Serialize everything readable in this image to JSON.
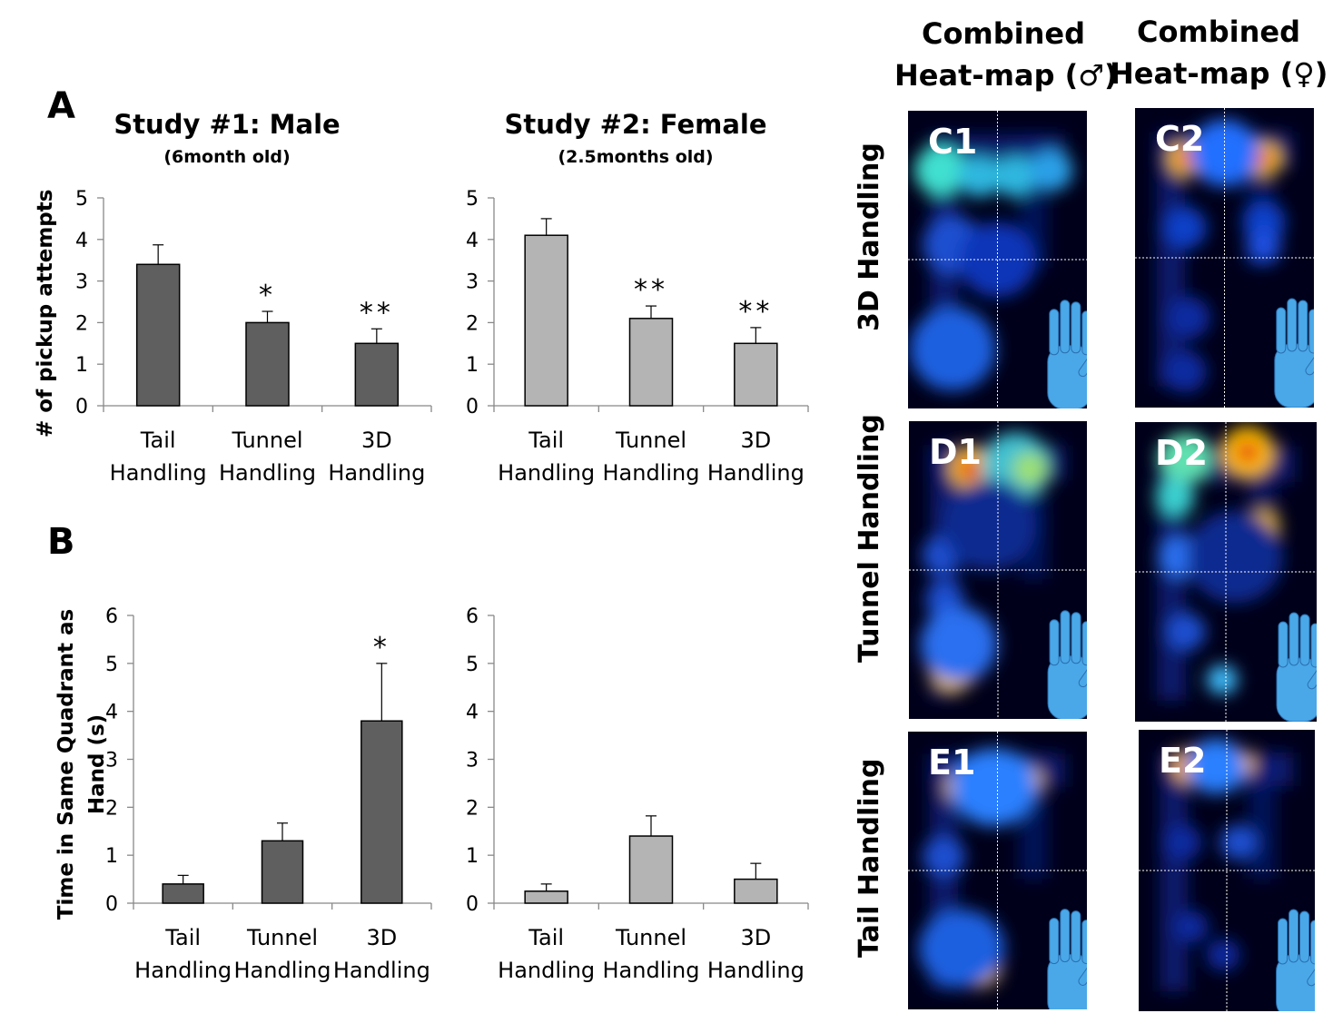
{
  "panels": {
    "a": "A",
    "b": "B"
  },
  "colors": {
    "male_bar": "#5f5f5f",
    "female_bar": "#b4b4b4"
  },
  "charts": {
    "a1": {
      "title": "Study #1: Male",
      "subtitle": "(6month old)",
      "ylabel": "# of pickup attempts"
    },
    "a2": {
      "title": "Study #2: Female",
      "subtitle": "(2.5months old)"
    },
    "b1": {
      "ylabel_line1": "Time in Same Quadrant as",
      "ylabel_line2": "Hand (s)"
    }
  },
  "heatmaps": {
    "col_male": [
      "Combined",
      "Heat-map (♂)"
    ],
    "col_female": [
      "Combined",
      "Heat-map (♀)"
    ],
    "rows": [
      "3D Handling",
      "Tunnel Handling",
      "Tail Handling"
    ],
    "tiles": [
      "C1",
      "C2",
      "D1",
      "D2",
      "E1",
      "E2"
    ]
  },
  "chart_data": [
    {
      "id": "a1",
      "type": "bar",
      "title": "Study #1: Male",
      "subtitle": "(6month old)",
      "ylabel": "# of pickup attempts",
      "categories": [
        [
          "Tail",
          "Handling"
        ],
        [
          "Tunnel",
          "Handling"
        ],
        [
          "3D",
          "Handling"
        ]
      ],
      "values": [
        3.4,
        2.0,
        1.5
      ],
      "errors": [
        0.47,
        0.27,
        0.35
      ],
      "significance": [
        "",
        "*",
        "**"
      ],
      "ylim": [
        0,
        5
      ],
      "yticks": [
        0,
        1,
        2,
        3,
        4,
        5
      ],
      "color": "#5f5f5f"
    },
    {
      "id": "a2",
      "type": "bar",
      "title": "Study #2: Female",
      "subtitle": "(2.5months old)",
      "ylabel": "",
      "categories": [
        [
          "Tail",
          "Handling"
        ],
        [
          "Tunnel",
          "Handling"
        ],
        [
          "3D",
          "Handling"
        ]
      ],
      "values": [
        4.1,
        2.1,
        1.5
      ],
      "errors": [
        0.4,
        0.3,
        0.38
      ],
      "significance": [
        "",
        "**",
        "**"
      ],
      "ylim": [
        0,
        5
      ],
      "yticks": [
        0,
        1,
        2,
        3,
        4,
        5
      ],
      "color": "#b4b4b4"
    },
    {
      "id": "b1",
      "type": "bar",
      "title": "",
      "ylabel": "Time in Same Quadrant as Hand (s)",
      "categories": [
        [
          "Tail",
          "Handling"
        ],
        [
          "Tunnel",
          "Handling"
        ],
        [
          "3D",
          "Handling"
        ]
      ],
      "values": [
        0.4,
        1.3,
        3.8
      ],
      "errors": [
        0.18,
        0.37,
        1.2
      ],
      "significance": [
        "",
        "",
        "*"
      ],
      "ylim": [
        0,
        6
      ],
      "yticks": [
        0,
        1,
        2,
        3,
        4,
        5,
        6
      ],
      "color": "#5f5f5f"
    },
    {
      "id": "b2",
      "type": "bar",
      "title": "",
      "ylabel": "",
      "categories": [
        [
          "Tail",
          "Handling"
        ],
        [
          "Tunnel",
          "Handling"
        ],
        [
          "3D",
          "Handling"
        ]
      ],
      "values": [
        0.25,
        1.4,
        0.5
      ],
      "errors": [
        0.15,
        0.42,
        0.33
      ],
      "significance": [
        "",
        "",
        ""
      ],
      "ylim": [
        0,
        6
      ],
      "yticks": [
        0,
        1,
        2,
        3,
        4,
        5,
        6
      ],
      "color": "#b4b4b4"
    }
  ]
}
